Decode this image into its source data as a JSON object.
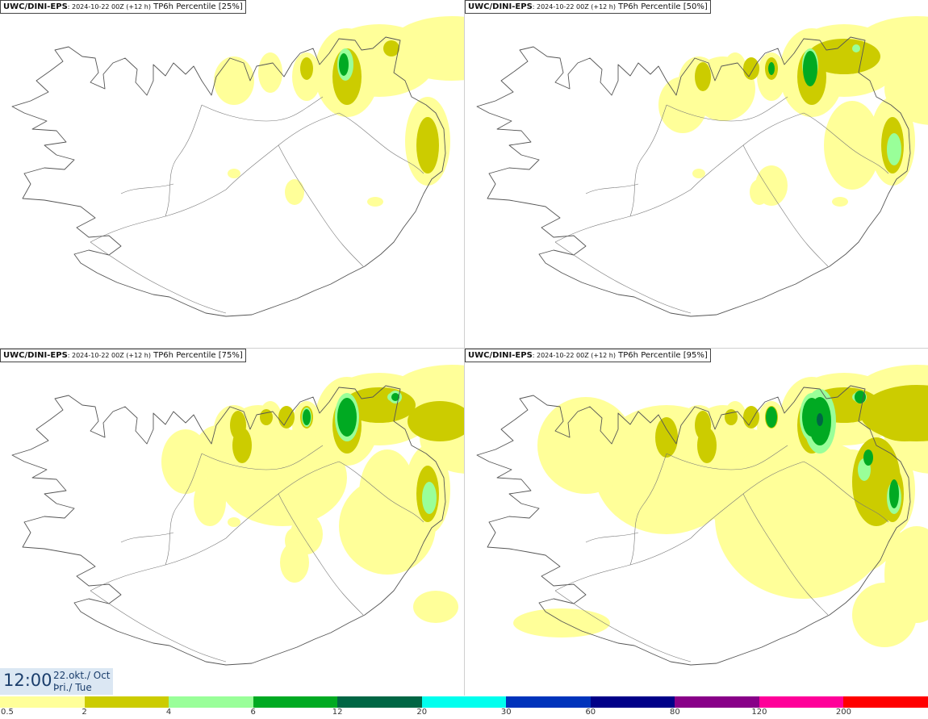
{
  "panels": [
    {
      "model": "UWC/DINI-EPS",
      "info": ": 2024-10-22 00Z (+12 h)",
      "title": "TP6h Percentile [25%]",
      "percentile": 25
    },
    {
      "model": "UWC/DINI-EPS",
      "info": ": 2024-10-22 00Z (+12 h)",
      "title": "TP6h Percentile [50%]",
      "percentile": 50
    },
    {
      "model": "UWC/DINI-EPS",
      "info": ": 2024-10-22 00Z (+12 h)",
      "title": "TP6h Percentile [75%]",
      "percentile": 75
    },
    {
      "model": "UWC/DINI-EPS",
      "info": ": 2024-10-22 00Z (+12 h)",
      "title": "TP6h Percentile [95%]",
      "percentile": 95
    }
  ],
  "time": {
    "clock": "12:00",
    "date_line1": "22.okt./ Oct",
    "date_line2": "Þri./ Tue"
  },
  "legend": {
    "ticks": [
      "0.5",
      "2",
      "4",
      "6",
      "12",
      "20",
      "30",
      "60",
      "80",
      "120",
      "200"
    ],
    "colors": [
      "#ffff99",
      "#cccc00",
      "#99ff99",
      "#00aa22",
      "#006644",
      "#00ffee",
      "#0033bb",
      "#000088",
      "#880088",
      "#ff0099",
      "#ff0000"
    ]
  }
}
